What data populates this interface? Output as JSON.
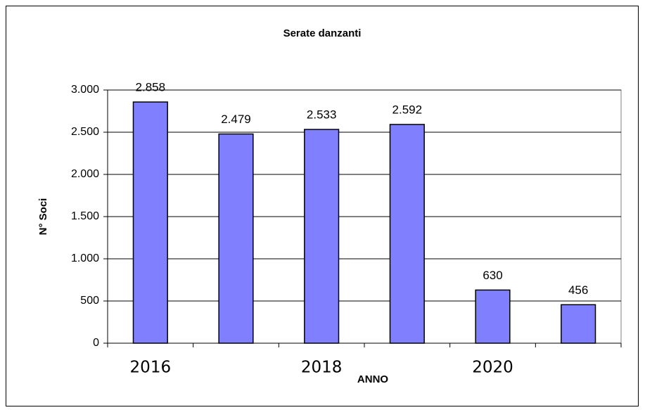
{
  "chart_data": {
    "type": "bar",
    "title": "Serate danzanti",
    "x_label": "ANNO",
    "y_label": "N° Soci",
    "categories": [
      "2016",
      null,
      "2018",
      null,
      "2020",
      null
    ],
    "values": [
      2858,
      2479,
      2533,
      2592,
      630,
      456
    ],
    "value_labels": [
      "2.858",
      "2.479",
      "2.533",
      "2.592",
      "630",
      "456"
    ],
    "color": "#8080ff",
    "ylim": [
      0,
      3000
    ],
    "yticks": [
      0,
      500,
      {
        "value": 1000,
        "label": "1.000"
      },
      {
        "value": 1500,
        "label": "1.500"
      },
      {
        "value": 2000,
        "label": "2.000"
      },
      {
        "value": 2500,
        "label": "2.500"
      },
      {
        "value": 3000,
        "label": "3.000"
      }
    ],
    "grid": true
  }
}
